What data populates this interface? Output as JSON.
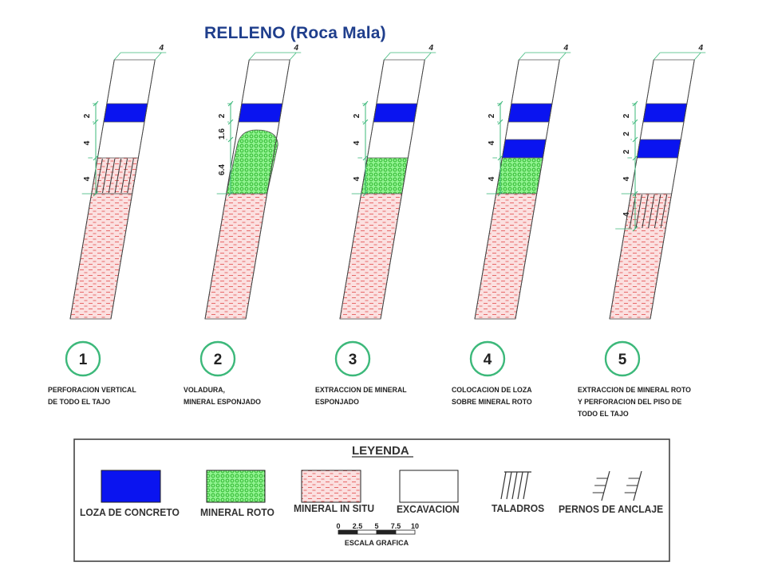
{
  "title": "RELLENO  (Roca Mala)",
  "stages": [
    {
      "number": "1",
      "caption": "PERFORACION VERTICAL\nDE TODO EL TAJO",
      "dimensions": [
        "4",
        "2",
        "4",
        "4"
      ]
    },
    {
      "number": "2",
      "caption": "VOLADURA,\nMINERAL ESPONJADO",
      "dimensions": [
        "4",
        "2",
        "1.6",
        "6.4"
      ]
    },
    {
      "number": "3",
      "caption": "EXTRACCION DE MINERAL\nESPONJADO",
      "dimensions": [
        "4",
        "2",
        "4",
        "4"
      ]
    },
    {
      "number": "4",
      "caption": "COLOCACION DE LOZA\nSOBRE MINERAL ROTO",
      "dimensions": [
        "4",
        "2",
        "4",
        "4"
      ]
    },
    {
      "number": "5",
      "caption": "EXTRACCION DE MINERAL ROTO\nY PERFORACION DEL PISO DE\nTODO EL TAJO",
      "dimensions": [
        "4",
        "2",
        "2",
        "2",
        "4",
        "4"
      ]
    }
  ],
  "legend": {
    "title": "LEYENDA",
    "items": [
      {
        "label": "LOZA DE CONCRETO",
        "icon": "concrete-slab-swatch"
      },
      {
        "label": "MINERAL ROTO",
        "icon": "broken-ore-swatch"
      },
      {
        "label": "MINERAL IN SITU",
        "icon": "in-situ-ore-swatch"
      },
      {
        "label": "EXCAVACION",
        "icon": "excavation-swatch"
      },
      {
        "label": "TALADROS",
        "icon": "drill-holes-icon"
      },
      {
        "label": "PERNOS DE ANCLAJE",
        "icon": "rock-bolts-icon"
      }
    ],
    "scale": {
      "ticks": [
        "0",
        "2.5",
        "5",
        "7.5",
        "10"
      ],
      "label": "ESCALA  GRAFICA"
    }
  },
  "colors": {
    "concrete": "#0a14f0",
    "broken_ore_fill": "#8ff28f",
    "broken_ore_dots": "#27b327",
    "in_situ_fill": "#fbe0e0",
    "in_situ_dash": "#e55a5a",
    "dimension": "#3cb87a",
    "title": "#1f3e8c"
  }
}
